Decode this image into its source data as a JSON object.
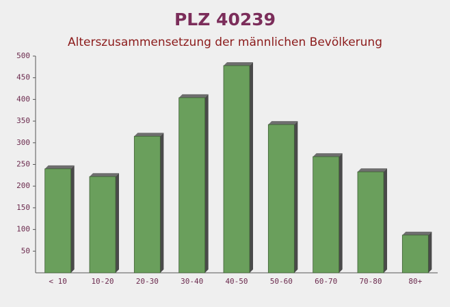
{
  "chart_data": {
    "type": "bar",
    "title": "PLZ 40239",
    "subtitle": "Alterszusammensetzung der männlichen Bevölkerung",
    "categories": [
      "< 10",
      "10-20",
      "20-30",
      "30-40",
      "40-50",
      "50-60",
      "60-70",
      "70-80",
      "80+"
    ],
    "values": [
      240,
      222,
      315,
      404,
      478,
      342,
      268,
      233,
      87
    ],
    "color": "#6a9f5c",
    "ylim": [
      0,
      500
    ],
    "yticks": [
      50,
      100,
      150,
      200,
      250,
      300,
      350,
      400,
      450,
      500
    ],
    "grid": false
  }
}
